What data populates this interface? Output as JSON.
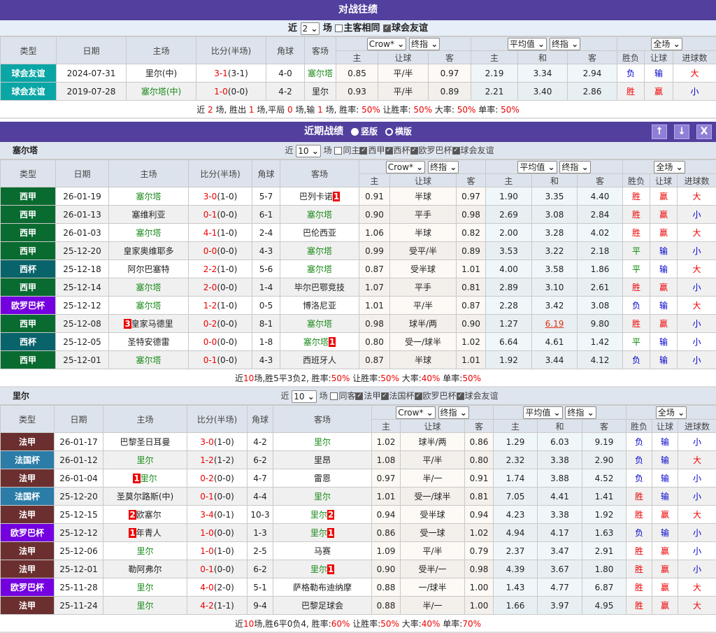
{
  "colors": {
    "header": "#523f9e",
    "team": "#1a8a1a",
    "win": "#e00",
    "lose": "#00c",
    "draw": "#080"
  },
  "type_colors": {
    "球会友谊": "#0aa6a6",
    "西甲": "#0a6b30",
    "西杯": "#08636a",
    "欧罗巴杯": "#7400e0",
    "法甲": "#6b2f2f",
    "法国杯": "#2b7da8"
  },
  "result_colors": {
    "胜": "#e00",
    "负": "#00c",
    "平": "#080",
    "赢": "#e00",
    "输": "#00c",
    "大": "#e00",
    "小": "#00c"
  },
  "columns": {
    "type": "类型",
    "date": "日期",
    "home": "主场",
    "score": "比分(半场)",
    "corner": "角球",
    "away": "客场",
    "odds_company": "Crow*",
    "odds_kind": "终指",
    "avg_company": "平均值",
    "avg_kind": "终指",
    "range": "全场",
    "home_o": "主",
    "hcp": "让球",
    "away_o": "客",
    "avg_h": "主",
    "avg_d": "和",
    "avg_a": "客",
    "res": "胜负",
    "res_hcp": "让球",
    "res_ou": "进球数"
  },
  "h2h": {
    "title": "对战往绩",
    "ctrl": {
      "near": "近",
      "count": "2",
      "unit": "场",
      "opt1": "主客相同",
      "opt2": "球会友谊"
    },
    "rows": [
      {
        "type": "球会友谊",
        "date": "2024-07-31",
        "home": "里尔(中)",
        "home_team": false,
        "ft": "3-1",
        "ht": "3-1",
        "corner": "4-0",
        "away": "塞尔塔",
        "away_team": true,
        "o": [
          "0.85",
          "平/半",
          "0.97"
        ],
        "avg": [
          "2.19",
          "3.34",
          "2.94"
        ],
        "r": [
          "负",
          "输",
          "大"
        ]
      },
      {
        "type": "球会友谊",
        "date": "2019-07-28",
        "home": "塞尔塔(中)",
        "home_team": true,
        "ft": "1-0",
        "ht": "0-0",
        "corner": "4-2",
        "away": "里尔",
        "away_team": false,
        "o": [
          "0.93",
          "平/半",
          "0.89"
        ],
        "avg": [
          "2.21",
          "3.40",
          "2.86"
        ],
        "r": [
          "胜",
          "赢",
          "小"
        ]
      }
    ],
    "summary": [
      {
        "t": "近 "
      },
      {
        "t": "2",
        "r": 1
      },
      {
        "t": " 场, 胜出 "
      },
      {
        "t": "1",
        "r": 1
      },
      {
        "t": " 场,平局 "
      },
      {
        "t": "0",
        "r": 1
      },
      {
        "t": " 场,输 "
      },
      {
        "t": "1",
        "r": 1
      },
      {
        "t": " 场, 胜率: "
      },
      {
        "t": "50%",
        "r": 1
      },
      {
        "t": " 让胜率: "
      },
      {
        "t": "50%",
        "r": 1
      },
      {
        "t": " 大率: "
      },
      {
        "t": "50%",
        "r": 1
      },
      {
        "t": " 单率: "
      },
      {
        "t": "50%",
        "r": 1
      }
    ]
  },
  "recent": {
    "title": "近期战绩",
    "radio1": "竖版",
    "radio2": "横版",
    "btn_up": "↑",
    "btn_down": "↓",
    "btn_close": "X"
  },
  "celta": {
    "team": "塞尔塔",
    "ctrl": {
      "near": "近",
      "count": "10",
      "unit": "场",
      "opts": [
        {
          "l": "同主",
          "on": false
        },
        {
          "l": "西甲",
          "on": true
        },
        {
          "l": "西杯",
          "on": true
        },
        {
          "l": "欧罗巴杯",
          "on": true
        },
        {
          "l": "球会友谊",
          "on": true
        }
      ]
    },
    "rows": [
      {
        "type": "西甲",
        "date": "26-01-19",
        "home": "塞尔塔",
        "home_team": true,
        "ft": "3-0",
        "ht": "1-0",
        "corner": "5-7",
        "away": "巴列卡诺",
        "away_mark": "1",
        "away_team": false,
        "o": [
          "0.91",
          "半球",
          "0.97"
        ],
        "avg": [
          "1.90",
          "3.35",
          "4.40"
        ],
        "r": [
          "胜",
          "赢",
          "大"
        ]
      },
      {
        "type": "西甲",
        "date": "26-01-13",
        "home": "塞维利亚",
        "home_team": false,
        "ft": "0-1",
        "ht": "0-0",
        "corner": "6-1",
        "away": "塞尔塔",
        "away_team": true,
        "o": [
          "0.90",
          "平手",
          "0.98"
        ],
        "avg": [
          "2.69",
          "3.08",
          "2.84"
        ],
        "r": [
          "胜",
          "赢",
          "小"
        ]
      },
      {
        "type": "西甲",
        "date": "26-01-03",
        "home": "塞尔塔",
        "home_team": true,
        "ft": "4-1",
        "ht": "1-0",
        "corner": "2-4",
        "away": "巴伦西亚",
        "away_team": false,
        "o": [
          "1.06",
          "半球",
          "0.82"
        ],
        "avg": [
          "2.00",
          "3.28",
          "4.02"
        ],
        "r": [
          "胜",
          "赢",
          "大"
        ]
      },
      {
        "type": "西甲",
        "date": "25-12-20",
        "home": "皇家奥维耶多",
        "home_team": false,
        "ft": "0-0",
        "ht": "0-0",
        "corner": "4-3",
        "away": "塞尔塔",
        "away_team": true,
        "o": [
          "0.99",
          "受平/半",
          "0.89"
        ],
        "avg": [
          "3.53",
          "3.22",
          "2.18"
        ],
        "r": [
          "平",
          "输",
          "小"
        ]
      },
      {
        "type": "西杯",
        "date": "25-12-18",
        "home": "阿尔巴塞特",
        "home_team": false,
        "ft": "2-2",
        "ht": "1-0",
        "corner": "5-6",
        "away": "塞尔塔",
        "away_team": true,
        "o": [
          "0.87",
          "受半球",
          "1.01"
        ],
        "avg": [
          "4.00",
          "3.58",
          "1.86"
        ],
        "r": [
          "平",
          "输",
          "大"
        ]
      },
      {
        "type": "西甲",
        "date": "25-12-14",
        "home": "塞尔塔",
        "home_team": true,
        "ft": "2-0",
        "ht": "0-0",
        "corner": "1-4",
        "away": "毕尔巴鄂竞技",
        "away_team": false,
        "o": [
          "1.07",
          "平手",
          "0.81"
        ],
        "avg": [
          "2.89",
          "3.10",
          "2.61"
        ],
        "r": [
          "胜",
          "赢",
          "小"
        ]
      },
      {
        "type": "欧罗巴杯",
        "date": "25-12-12",
        "home": "塞尔塔",
        "home_team": true,
        "ft": "1-2",
        "ht": "1-0",
        "corner": "0-5",
        "away": "博洛尼亚",
        "away_team": false,
        "o": [
          "1.01",
          "平/半",
          "0.87"
        ],
        "avg": [
          "2.28",
          "3.42",
          "3.08"
        ],
        "r": [
          "负",
          "输",
          "大"
        ]
      },
      {
        "type": "西甲",
        "date": "25-12-08",
        "home": "皇家马德里",
        "home_mark": "3",
        "home_team": false,
        "ft": "0-2",
        "ht": "0-0",
        "corner": "8-1",
        "away": "塞尔塔",
        "away_team": true,
        "o": [
          "0.98",
          "球半/两",
          "0.90"
        ],
        "avg": [
          "1.27",
          "6.19",
          "9.80"
        ],
        "avg_hl": 1,
        "r": [
          "胜",
          "赢",
          "小"
        ]
      },
      {
        "type": "西杯",
        "date": "25-12-05",
        "home": "圣特安德雷",
        "home_team": false,
        "ft": "0-0",
        "ht": "0-0",
        "corner": "1-8",
        "away": "塞尔塔",
        "away_mark": "1",
        "away_team": true,
        "o": [
          "0.80",
          "受一/球半",
          "1.02"
        ],
        "avg": [
          "6.64",
          "4.61",
          "1.42"
        ],
        "r": [
          "平",
          "输",
          "小"
        ]
      },
      {
        "type": "西甲",
        "date": "25-12-01",
        "home": "塞尔塔",
        "home_team": true,
        "ft": "0-1",
        "ht": "0-0",
        "corner": "4-3",
        "away": "西班牙人",
        "away_team": false,
        "o": [
          "0.87",
          "半球",
          "1.01"
        ],
        "avg": [
          "1.92",
          "3.44",
          "4.12"
        ],
        "r": [
          "负",
          "输",
          "小"
        ]
      }
    ],
    "summary": [
      {
        "t": "近"
      },
      {
        "t": "10",
        "r": 1
      },
      {
        "t": "场,胜5平3负2, 胜率:"
      },
      {
        "t": "50%",
        "r": 1
      },
      {
        "t": " 让胜率:"
      },
      {
        "t": "50%",
        "r": 1
      },
      {
        "t": " 大率:"
      },
      {
        "t": "40%",
        "r": 1
      },
      {
        "t": " 单率:"
      },
      {
        "t": "50%",
        "r": 1
      }
    ]
  },
  "lille": {
    "team": "里尔",
    "ctrl": {
      "near": "近",
      "count": "10",
      "unit": "场",
      "opts": [
        {
          "l": "同客",
          "on": false
        },
        {
          "l": "法甲",
          "on": true
        },
        {
          "l": "法国杯",
          "on": true
        },
        {
          "l": "欧罗巴杯",
          "on": true
        },
        {
          "l": "球会友谊",
          "on": true
        }
      ]
    },
    "rows": [
      {
        "type": "法甲",
        "date": "26-01-17",
        "home": "巴黎圣日耳曼",
        "home_team": false,
        "ft": "3-0",
        "ht": "1-0",
        "corner": "4-2",
        "away": "里尔",
        "away_team": true,
        "o": [
          "1.02",
          "球半/两",
          "0.86"
        ],
        "avg": [
          "1.29",
          "6.03",
          "9.19"
        ],
        "r": [
          "负",
          "输",
          "小"
        ]
      },
      {
        "type": "法国杯",
        "date": "26-01-12",
        "home": "里尔",
        "home_team": true,
        "ft": "1-2",
        "ht": "1-2",
        "corner": "6-2",
        "away": "里昂",
        "away_team": false,
        "o": [
          "1.08",
          "平/半",
          "0.80"
        ],
        "avg": [
          "2.32",
          "3.38",
          "2.90"
        ],
        "r": [
          "负",
          "输",
          "大"
        ]
      },
      {
        "type": "法甲",
        "date": "26-01-04",
        "home": "里尔",
        "home_mark": "1",
        "home_team": true,
        "ft": "0-2",
        "ht": "0-0",
        "corner": "4-7",
        "away": "雷恩",
        "away_team": false,
        "o": [
          "0.97",
          "半/一",
          "0.91"
        ],
        "avg": [
          "1.74",
          "3.88",
          "4.52"
        ],
        "r": [
          "负",
          "输",
          "小"
        ]
      },
      {
        "type": "法国杯",
        "date": "25-12-20",
        "home": "圣莫尔路斯(中)",
        "home_team": false,
        "ft": "0-1",
        "ht": "0-0",
        "corner": "4-4",
        "away": "里尔",
        "away_team": true,
        "o": [
          "1.01",
          "受一/球半",
          "0.81"
        ],
        "avg": [
          "7.05",
          "4.41",
          "1.41"
        ],
        "r": [
          "胜",
          "输",
          "小"
        ]
      },
      {
        "type": "法甲",
        "date": "25-12-15",
        "home": "欧塞尔",
        "home_mark": "2",
        "home_team": false,
        "ft": "3-4",
        "ht": "0-1",
        "corner": "10-3",
        "away": "里尔",
        "away_mark": "2",
        "away_team": true,
        "o": [
          "0.94",
          "受半球",
          "0.94"
        ],
        "avg": [
          "4.23",
          "3.38",
          "1.92"
        ],
        "r": [
          "胜",
          "赢",
          "大"
        ]
      },
      {
        "type": "欧罗巴杯",
        "date": "25-12-12",
        "home": "年青人",
        "home_mark": "1",
        "home_team": false,
        "ft": "1-0",
        "ht": "0-0",
        "corner": "1-3",
        "away": "里尔",
        "away_mark": "1",
        "away_team": true,
        "o": [
          "0.86",
          "受一球",
          "1.02"
        ],
        "avg": [
          "4.94",
          "4.17",
          "1.63"
        ],
        "r": [
          "负",
          "输",
          "小"
        ]
      },
      {
        "type": "法甲",
        "date": "25-12-06",
        "home": "里尔",
        "home_team": true,
        "ft": "1-0",
        "ht": "1-0",
        "corner": "2-5",
        "away": "马赛",
        "away_team": false,
        "o": [
          "1.09",
          "平/半",
          "0.79"
        ],
        "avg": [
          "2.37",
          "3.47",
          "2.91"
        ],
        "r": [
          "胜",
          "赢",
          "小"
        ]
      },
      {
        "type": "法甲",
        "date": "25-12-01",
        "home": "勒阿弗尔",
        "home_team": false,
        "ft": "0-1",
        "ht": "0-0",
        "corner": "6-2",
        "away": "里尔",
        "away_mark": "1",
        "away_team": true,
        "o": [
          "0.90",
          "受半/一",
          "0.98"
        ],
        "avg": [
          "4.39",
          "3.67",
          "1.80"
        ],
        "r": [
          "胜",
          "赢",
          "小"
        ]
      },
      {
        "type": "欧罗巴杯",
        "date": "25-11-28",
        "home": "里尔",
        "home_team": true,
        "ft": "4-0",
        "ht": "2-0",
        "corner": "5-1",
        "away": "萨格勒布迪纳摩",
        "away_team": false,
        "o": [
          "0.88",
          "一/球半",
          "1.00"
        ],
        "avg": [
          "1.43",
          "4.77",
          "6.87"
        ],
        "r": [
          "胜",
          "赢",
          "大"
        ]
      },
      {
        "type": "法甲",
        "date": "25-11-24",
        "home": "里尔",
        "home_team": true,
        "ft": "4-2",
        "ht": "1-1",
        "corner": "9-4",
        "away": "巴黎足球会",
        "away_team": false,
        "o": [
          "0.88",
          "半/一",
          "1.00"
        ],
        "avg": [
          "1.66",
          "3.97",
          "4.95"
        ],
        "r": [
          "胜",
          "赢",
          "大"
        ]
      }
    ],
    "summary": [
      {
        "t": "近"
      },
      {
        "t": "10",
        "r": 1
      },
      {
        "t": "场,胜6平0负4, 胜率:"
      },
      {
        "t": "60%",
        "r": 1
      },
      {
        "t": " 让胜率:"
      },
      {
        "t": "50%",
        "r": 1
      },
      {
        "t": " 大率:"
      },
      {
        "t": "40%",
        "r": 1
      },
      {
        "t": " 单率:"
      },
      {
        "t": "70%",
        "r": 1
      }
    ]
  }
}
